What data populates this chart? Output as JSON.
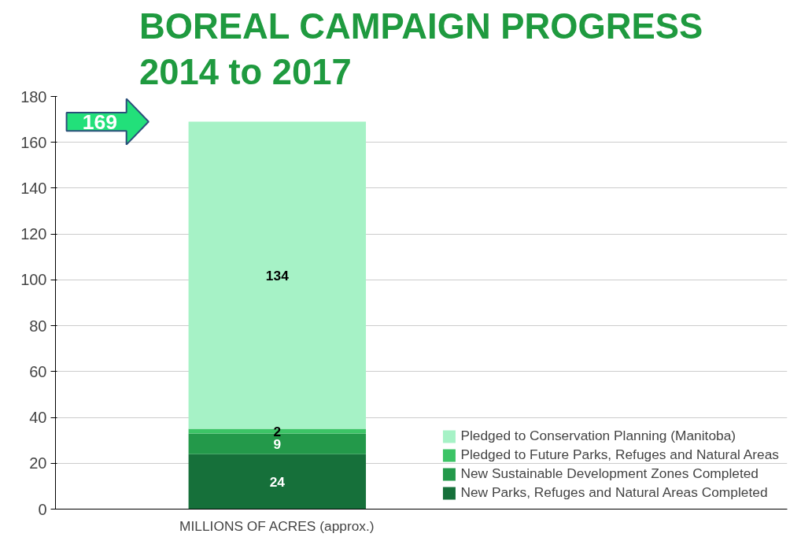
{
  "chart_data": {
    "type": "bar",
    "title": "BOREAL CAMPAIGN PROGRESS",
    "subtitle": "2014 to 2017",
    "categories": [
      "MILLIONS OF ACRES (approx.)"
    ],
    "stacked": true,
    "series": [
      {
        "name": "New Parks, Refuges and Natural Areas Completed",
        "color": "#16703a",
        "values": [
          24
        ]
      },
      {
        "name": "New Sustainable Development Zones Completed",
        "color": "#23994a",
        "values": [
          9
        ]
      },
      {
        "name": "Pledged to Future Parks, Refuges and Natural Areas",
        "color": "#3cc466",
        "values": [
          2
        ]
      },
      {
        "name": "Pledged to Conservation Planning (Manitoba)",
        "color": "#a6f2c6",
        "values": [
          134
        ]
      }
    ],
    "annotations": [
      "169"
    ],
    "data_labels": true,
    "ylim": [
      0,
      180
    ],
    "yticks": [
      0,
      20,
      40,
      60,
      80,
      100,
      120,
      140,
      160,
      180
    ],
    "grid": "y",
    "legend": "bottom right"
  }
}
